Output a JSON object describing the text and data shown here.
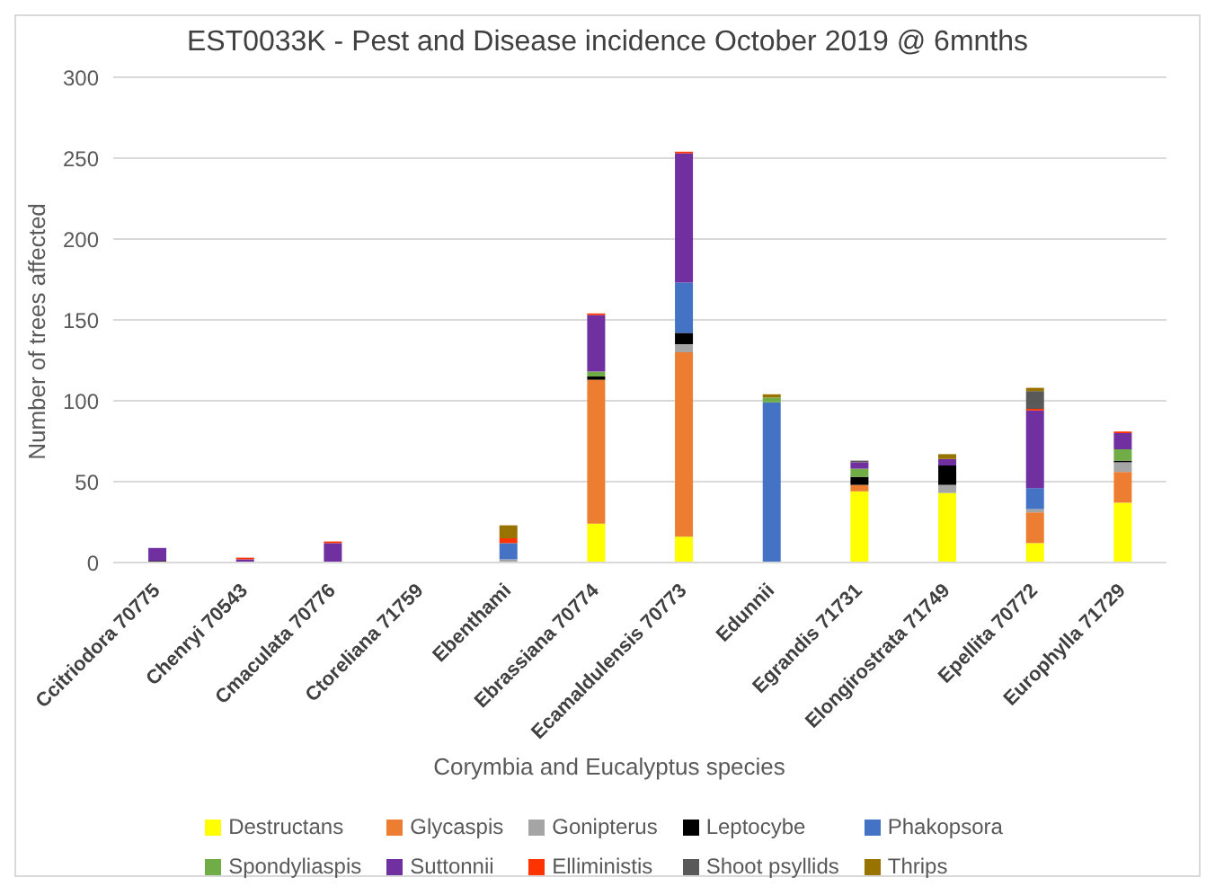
{
  "chart_data": {
    "type": "bar",
    "stacked": true,
    "title": "EST0033K - Pest and Disease incidence October 2019 @ 6mnths",
    "xlabel": "Corymbia and Eucalyptus species",
    "ylabel": "Number of trees affected",
    "categories": [
      "Ccitriodora 70775",
      "Chenryi 70543",
      "Cmaculata 70776",
      "Ctoreliana 71759",
      "Ebenthami",
      "Ebrassiana 70774",
      "Ecamaldulensis 70773",
      "Edunnii",
      "Egrandis 71731",
      "Elongirostrata 71749",
      "Epellita 70772",
      "Europhylla 71729"
    ],
    "series": [
      {
        "name": "Destructans",
        "color": "#ffff00",
        "values": [
          0,
          0,
          0,
          0,
          0,
          24,
          16,
          0,
          44,
          43,
          12,
          37
        ]
      },
      {
        "name": "Glycaspis",
        "color": "#ed7d31",
        "values": [
          0,
          0,
          0,
          0,
          0,
          89,
          114,
          0,
          4,
          0,
          19,
          19
        ]
      },
      {
        "name": "Gonipterus",
        "color": "#a5a5a5",
        "values": [
          0,
          0,
          0,
          0,
          2,
          null,
          5,
          0,
          0,
          5,
          2,
          6
        ]
      },
      {
        "name": "Leptocybe",
        "color": "#000000",
        "values": [
          1,
          0,
          0,
          0,
          0,
          2,
          7,
          0,
          5,
          12,
          0,
          1
        ]
      },
      {
        "name": "Phakopsora",
        "color": "#4472c4",
        "values": [
          0,
          0,
          0,
          0,
          10,
          0,
          31,
          99,
          0,
          0,
          13,
          0
        ]
      },
      {
        "name": "Spondyliaspis",
        "color": "#70ad47",
        "values": [
          0,
          0,
          0,
          0,
          0,
          3,
          0,
          3,
          5,
          0,
          0,
          7
        ]
      },
      {
        "name": "Suttonnii",
        "color": "#7030a0",
        "values": [
          8,
          2,
          12,
          0,
          0,
          35,
          80,
          0,
          4,
          4,
          48,
          10
        ]
      },
      {
        "name": "Elliministis",
        "color": "#ff3300",
        "values": [
          0,
          1,
          1,
          0,
          3,
          1,
          1,
          0,
          0,
          0,
          1,
          1
        ]
      },
      {
        "name": "Shoot psyllids",
        "color": "#595959",
        "values": [
          0,
          0,
          0,
          0,
          0,
          0,
          0,
          0,
          1,
          0,
          11,
          0
        ]
      },
      {
        "name": "Thrips",
        "color": "#997300",
        "values": [
          0,
          0,
          0,
          0,
          8,
          0,
          0,
          2,
          0,
          3,
          2,
          0
        ]
      }
    ],
    "ylim": [
      0,
      300
    ],
    "yticks": [
      0,
      50,
      100,
      150,
      200,
      250,
      300
    ],
    "grid": "y",
    "legend": "bottom"
  }
}
